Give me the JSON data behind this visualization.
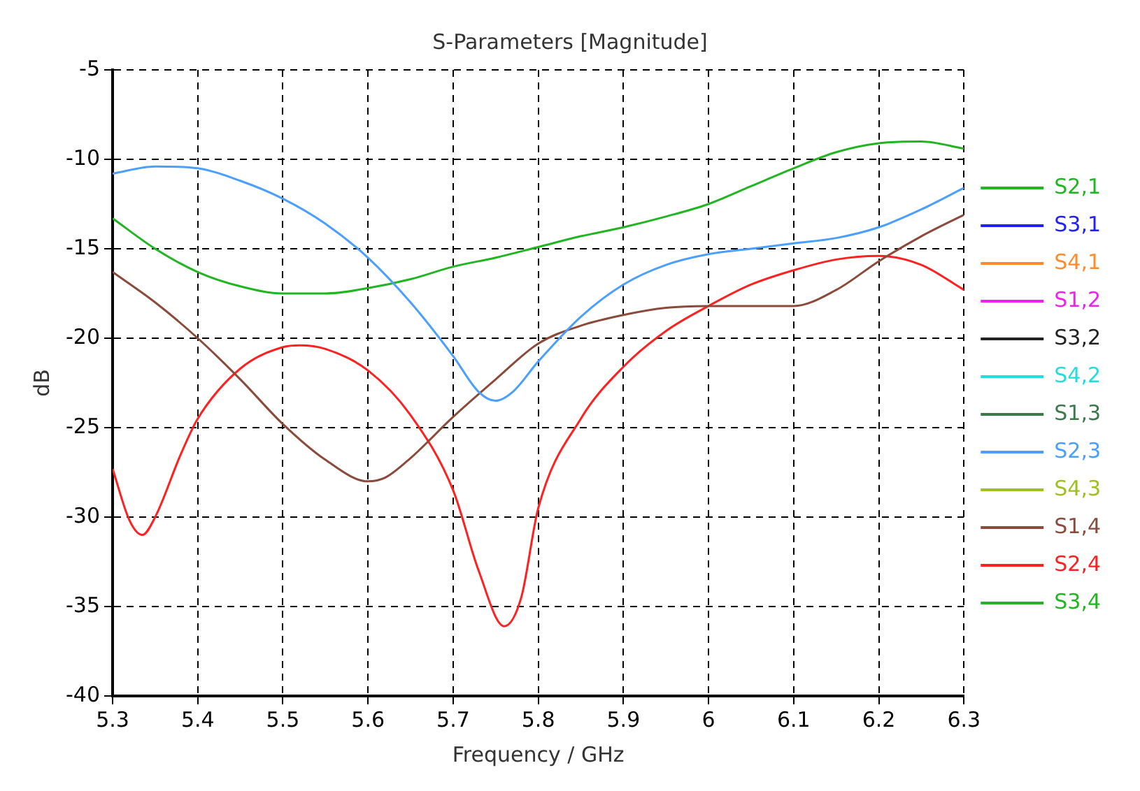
{
  "chart_data": {
    "type": "line",
    "title": "S-Parameters [Magnitude]",
    "xlabel": "Frequency / GHz",
    "ylabel": "dB",
    "xlim": [
      5.3,
      6.3
    ],
    "xticks": [
      5.3,
      5.4,
      5.5,
      5.6,
      5.7,
      5.8,
      5.9,
      6,
      6.1,
      6.2,
      6.3
    ],
    "ylim": [
      -40,
      -5
    ],
    "yticks": [
      -40,
      -35,
      -30,
      -25,
      -20,
      -15,
      -10,
      -5
    ],
    "grid": true,
    "legend": "right",
    "marker": "none",
    "line_style": "solid",
    "series": [
      {
        "name": "S2,1",
        "color": "#22b522"
      },
      {
        "name": "S3,1",
        "color": "#2020ff"
      },
      {
        "name": "S4,1",
        "color": "#ff8c2a"
      },
      {
        "name": "S1,2",
        "color": "#ee22ee"
      },
      {
        "name": "S3,2",
        "color": "#222222"
      },
      {
        "name": "S4,2",
        "color": "#22dddd"
      },
      {
        "name": "S1,3",
        "color": "#3a7a4a"
      },
      {
        "name": "S2,3",
        "color": "#4a9fff",
        "x": [
          5.3,
          5.35,
          5.4,
          5.45,
          5.5,
          5.55,
          5.6,
          5.65,
          5.7,
          5.73,
          5.75,
          5.77,
          5.8,
          5.85,
          5.9,
          5.95,
          6.0,
          6.05,
          6.1,
          6.15,
          6.2,
          6.25,
          6.3
        ],
        "values": [
          -10.8,
          -10.4,
          -10.5,
          -11.2,
          -12.2,
          -13.6,
          -15.5,
          -18.0,
          -21.0,
          -23.0,
          -23.5,
          -23.0,
          -21.3,
          -18.8,
          -17.0,
          -15.9,
          -15.3,
          -15.0,
          -14.7,
          -14.4,
          -13.8,
          -12.8,
          -11.6
        ]
      },
      {
        "name": "S4,3",
        "color": "#a0c020"
      },
      {
        "name": "S1,4",
        "color": "#8b4a3a",
        "x": [
          5.3,
          5.35,
          5.4,
          5.45,
          5.5,
          5.55,
          5.6,
          5.62,
          5.65,
          5.7,
          5.75,
          5.8,
          5.85,
          5.9,
          5.95,
          6.0,
          6.05,
          6.1,
          6.15,
          6.2,
          6.25,
          6.3
        ],
        "values": [
          -16.3,
          -18.0,
          -20.0,
          -22.3,
          -24.8,
          -26.8,
          -28.0,
          -27.8,
          -26.7,
          -24.4,
          -22.3,
          -20.3,
          -19.3,
          -18.7,
          -18.3,
          -18.2,
          -18.2,
          -18.2,
          -17.3,
          -15.7,
          -14.3,
          -13.1
        ]
      },
      {
        "name": "S2,4",
        "color": "#ff2020",
        "x": [
          5.3,
          5.32,
          5.335,
          5.35,
          5.38,
          5.4,
          5.45,
          5.5,
          5.52,
          5.55,
          5.6,
          5.65,
          5.7,
          5.73,
          5.76,
          5.78,
          5.8,
          5.85,
          5.9,
          5.95,
          6.0,
          6.05,
          6.1,
          6.15,
          6.2,
          6.25,
          6.3
        ],
        "values": [
          -27.3,
          -30.2,
          -31.0,
          -30.0,
          -26.5,
          -24.5,
          -21.7,
          -20.5,
          -20.4,
          -20.6,
          -21.8,
          -24.3,
          -28.5,
          -33.0,
          -36.1,
          -34.5,
          -29.5,
          -24.5,
          -21.6,
          -19.6,
          -18.2,
          -17.0,
          -16.2,
          -15.6,
          -15.4,
          -15.9,
          -17.3
        ]
      },
      {
        "name": "S3,4",
        "color": "#22b522",
        "x": [
          5.3,
          5.35,
          5.4,
          5.45,
          5.5,
          5.55,
          5.6,
          5.65,
          5.7,
          5.75,
          5.8,
          5.85,
          5.9,
          5.95,
          6.0,
          6.05,
          6.1,
          6.15,
          6.2,
          6.25,
          6.3
        ],
        "values": [
          -13.3,
          -15.0,
          -16.3,
          -17.1,
          -17.5,
          -17.5,
          -17.2,
          -16.7,
          -16.0,
          -15.5,
          -14.9,
          -14.3,
          -13.8,
          -13.2,
          -12.5,
          -11.5,
          -10.5,
          -9.6,
          -9.1,
          -9.0,
          -9.4
        ]
      }
    ]
  }
}
